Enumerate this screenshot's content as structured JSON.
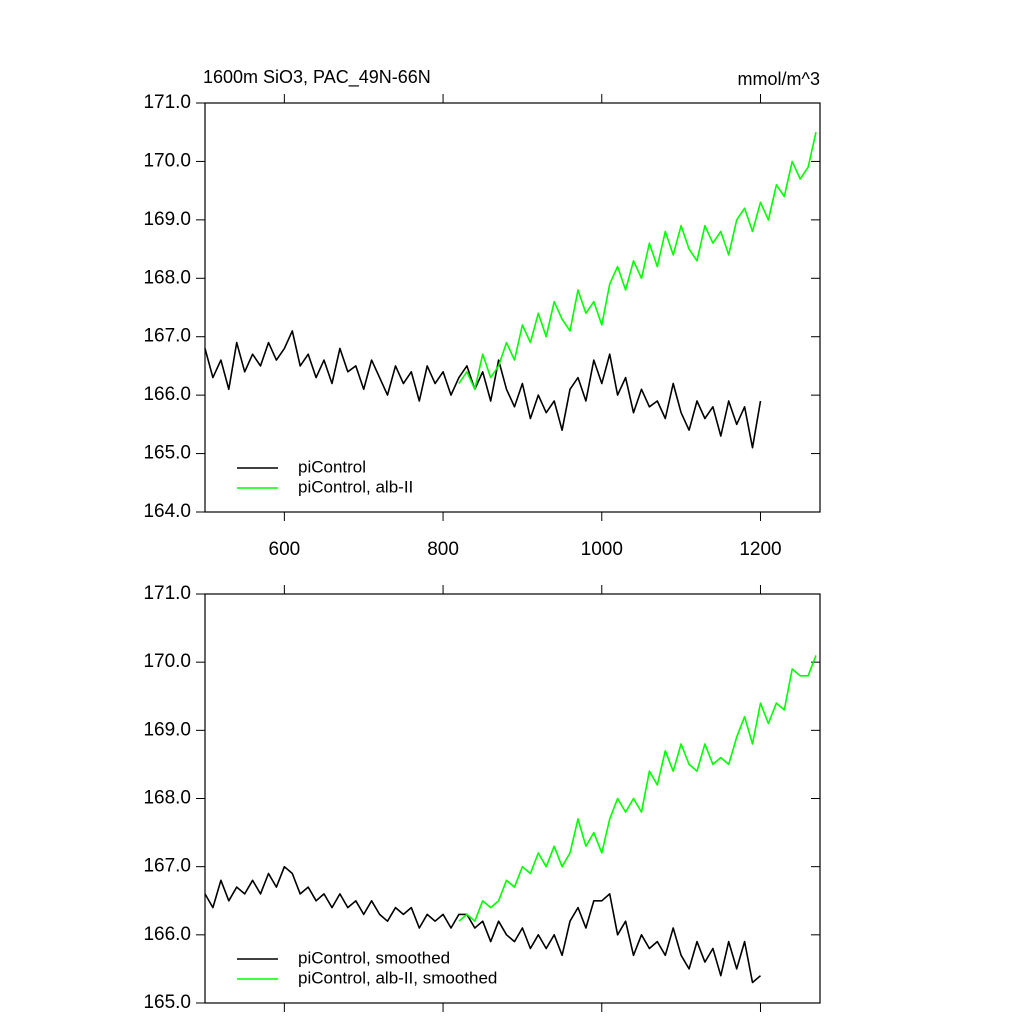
{
  "chart_data": [
    {
      "type": "line",
      "title": "1600m SiO3, PAC_49N-66N",
      "units": "mmol/m^3",
      "x": [
        500,
        510,
        520,
        530,
        540,
        550,
        560,
        570,
        580,
        590,
        600,
        610,
        620,
        630,
        640,
        650,
        660,
        670,
        680,
        690,
        700,
        710,
        720,
        730,
        740,
        750,
        760,
        770,
        780,
        790,
        800,
        810,
        820,
        830,
        840,
        850,
        860,
        870,
        880,
        890,
        900,
        910,
        920,
        930,
        940,
        950,
        960,
        970,
        980,
        990,
        1000,
        1010,
        1020,
        1030,
        1040,
        1050,
        1060,
        1070,
        1080,
        1090,
        1100,
        1110,
        1120,
        1130,
        1140,
        1150,
        1160,
        1170,
        1180,
        1190,
        1200,
        1210,
        1220,
        1230,
        1240,
        1250,
        1260,
        1270
      ],
      "series": [
        {
          "name": "piControl",
          "color": "#000000",
          "values": [
            166.8,
            166.3,
            166.6,
            166.1,
            166.9,
            166.4,
            166.7,
            166.5,
            166.9,
            166.6,
            166.8,
            167.1,
            166.5,
            166.7,
            166.3,
            166.6,
            166.2,
            166.8,
            166.4,
            166.5,
            166.1,
            166.6,
            166.3,
            166.0,
            166.5,
            166.2,
            166.4,
            165.9,
            166.5,
            166.2,
            166.4,
            166.0,
            166.3,
            166.5,
            166.1,
            166.4,
            165.9,
            166.6,
            166.1,
            165.8,
            166.2,
            165.6,
            166.0,
            165.7,
            165.9,
            165.4,
            166.1,
            166.3,
            165.9,
            166.6,
            166.2,
            166.7,
            166.0,
            166.3,
            165.7,
            166.1,
            165.8,
            165.9,
            165.6,
            166.2,
            165.7,
            165.4,
            165.9,
            165.6,
            165.8,
            165.3,
            165.9,
            165.5,
            165.8,
            165.1,
            165.9,
            null,
            null,
            null,
            null,
            null,
            null,
            null
          ]
        },
        {
          "name": "piControl, alb-II",
          "color": "#00ff00",
          "values": [
            null,
            null,
            null,
            null,
            null,
            null,
            null,
            null,
            null,
            null,
            null,
            null,
            null,
            null,
            null,
            null,
            null,
            null,
            null,
            null,
            null,
            null,
            null,
            null,
            null,
            null,
            null,
            null,
            null,
            null,
            null,
            null,
            166.2,
            166.4,
            166.1,
            166.7,
            166.3,
            166.5,
            166.9,
            166.6,
            167.2,
            166.9,
            167.4,
            167.0,
            167.6,
            167.3,
            167.1,
            167.8,
            167.4,
            167.6,
            167.2,
            167.9,
            168.2,
            167.8,
            168.3,
            168.0,
            168.6,
            168.2,
            168.8,
            168.4,
            168.9,
            168.5,
            168.3,
            168.9,
            168.6,
            168.8,
            168.4,
            169.0,
            169.2,
            168.8,
            169.3,
            169.0,
            169.6,
            169.4,
            170.0,
            169.7,
            169.9,
            170.5
          ]
        }
      ],
      "xlim": [
        500,
        1275
      ],
      "xticks": [
        600,
        800,
        1000,
        1200
      ],
      "show_xtick_labels": true,
      "ylim": [
        164,
        171
      ],
      "yticks": [
        {
          "value": 164,
          "label": "164.0"
        },
        {
          "value": 165,
          "label": "165.0"
        },
        {
          "value": 166,
          "label": "166.0"
        },
        {
          "value": 167,
          "label": "167.0"
        },
        {
          "value": 168,
          "label": "168.0"
        },
        {
          "value": 169,
          "label": "169.0"
        },
        {
          "value": 170,
          "label": "170.0"
        },
        {
          "value": 171,
          "label": "171.0"
        }
      ],
      "legend": "lower left"
    },
    {
      "type": "line",
      "x": [
        500,
        510,
        520,
        530,
        540,
        550,
        560,
        570,
        580,
        590,
        600,
        610,
        620,
        630,
        640,
        650,
        660,
        670,
        680,
        690,
        700,
        710,
        720,
        730,
        740,
        750,
        760,
        770,
        780,
        790,
        800,
        810,
        820,
        830,
        840,
        850,
        860,
        870,
        880,
        890,
        900,
        910,
        920,
        930,
        940,
        950,
        960,
        970,
        980,
        990,
        1000,
        1010,
        1020,
        1030,
        1040,
        1050,
        1060,
        1070,
        1080,
        1090,
        1100,
        1110,
        1120,
        1130,
        1140,
        1150,
        1160,
        1170,
        1180,
        1190,
        1200,
        1210,
        1220,
        1230,
        1240,
        1250,
        1260,
        1270
      ],
      "series": [
        {
          "name": "piControl, smoothed",
          "color": "#000000",
          "values": [
            166.6,
            166.4,
            166.8,
            166.5,
            166.7,
            166.6,
            166.8,
            166.6,
            166.9,
            166.7,
            167.0,
            166.9,
            166.6,
            166.7,
            166.5,
            166.6,
            166.4,
            166.6,
            166.4,
            166.5,
            166.3,
            166.5,
            166.3,
            166.2,
            166.4,
            166.3,
            166.4,
            166.1,
            166.3,
            166.2,
            166.3,
            166.1,
            166.3,
            166.3,
            166.1,
            166.2,
            165.9,
            166.2,
            166.0,
            165.9,
            166.1,
            165.8,
            166.0,
            165.8,
            166.0,
            165.7,
            166.2,
            166.4,
            166.1,
            166.5,
            166.5,
            166.6,
            166.0,
            166.2,
            165.7,
            166.0,
            165.8,
            165.9,
            165.7,
            166.1,
            165.7,
            165.5,
            165.9,
            165.6,
            165.8,
            165.4,
            165.9,
            165.5,
            165.9,
            165.3,
            165.4,
            null,
            null,
            null,
            null,
            null,
            null,
            null
          ]
        },
        {
          "name": "piControl, alb-II, smoothed",
          "color": "#00ff00",
          "values": [
            null,
            null,
            null,
            null,
            null,
            null,
            null,
            null,
            null,
            null,
            null,
            null,
            null,
            null,
            null,
            null,
            null,
            null,
            null,
            null,
            null,
            null,
            null,
            null,
            null,
            null,
            null,
            null,
            null,
            null,
            null,
            null,
            166.2,
            166.3,
            166.2,
            166.5,
            166.4,
            166.5,
            166.8,
            166.7,
            167.0,
            166.9,
            167.2,
            167.0,
            167.3,
            167.0,
            167.2,
            167.7,
            167.3,
            167.5,
            167.2,
            167.7,
            168.0,
            167.8,
            168.0,
            167.8,
            168.4,
            168.2,
            168.7,
            168.4,
            168.8,
            168.5,
            168.4,
            168.8,
            168.5,
            168.6,
            168.5,
            168.9,
            169.2,
            168.8,
            169.4,
            169.1,
            169.4,
            169.3,
            169.9,
            169.8,
            169.8,
            170.1
          ]
        }
      ],
      "xlim": [
        500,
        1275
      ],
      "xticks": [
        600,
        800,
        1000,
        1200
      ],
      "show_xtick_labels": false,
      "ylim": [
        165,
        171
      ],
      "yticks": [
        {
          "value": 165,
          "label": "165.0"
        },
        {
          "value": 166,
          "label": "166.0"
        },
        {
          "value": 167,
          "label": "167.0"
        },
        {
          "value": 168,
          "label": "168.0"
        },
        {
          "value": 169,
          "label": "169.0"
        },
        {
          "value": 170,
          "label": "170.0"
        },
        {
          "value": 171,
          "label": "171.0"
        }
      ],
      "legend": "lower left"
    }
  ]
}
